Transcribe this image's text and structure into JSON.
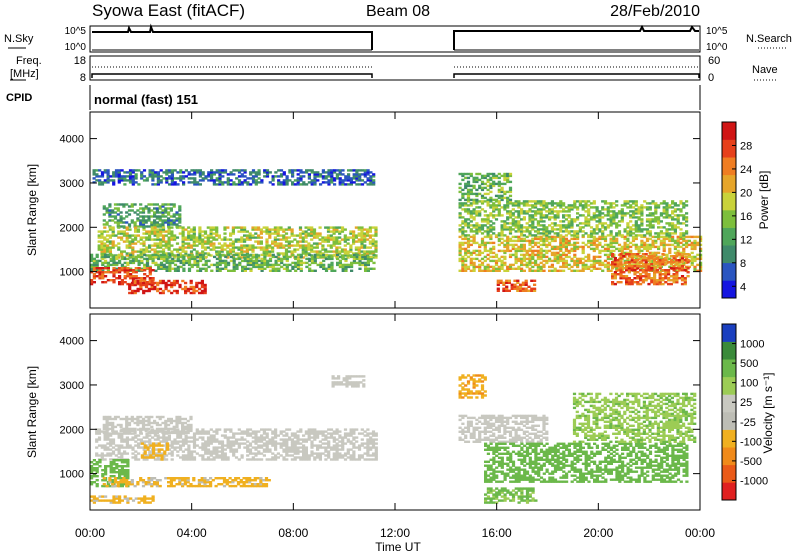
{
  "header": {
    "left": "Syowa East (fitACF)",
    "center": "Beam 08",
    "right": "28/Feb/2010"
  },
  "status_panels": {
    "nsky_label": "N.Sky",
    "nsearch_label": "N.Search",
    "noise_ticks": [
      "10^5",
      "10^0"
    ],
    "freq_label_1": "Freq.",
    "freq_label_2": "[MHz]",
    "freq_ticks": [
      "18",
      "8"
    ],
    "nave_label": "Nave",
    "nave_ticks": [
      "60",
      "0"
    ],
    "cpid_label": "CPID",
    "cpid_value": "normal (fast) 151"
  },
  "chart_data": [
    {
      "type": "heatmap",
      "name": "power",
      "ylabel": "Slant Range [km]",
      "ylim": [
        180,
        4600
      ],
      "yticks": [
        "1000",
        "2000",
        "3000",
        "4000"
      ],
      "colorbar_label": "Power [dB]",
      "colorbar_ticks": [
        "4",
        "8",
        "12",
        "16",
        "20",
        "24",
        "28"
      ],
      "colors": [
        "#1515e0",
        "#2a55c0",
        "#3f8a6a",
        "#4fa65a",
        "#7dbf3c",
        "#c9d23a",
        "#e6a52a",
        "#ef7d22",
        "#e6401b",
        "#d01515"
      ],
      "regions": [
        {
          "t0": 0.1,
          "t1": 11.2,
          "r0": 2950,
          "r1": 3300,
          "dB": 6
        },
        {
          "t0": 0.5,
          "t1": 3.5,
          "r0": 2000,
          "r1": 2500,
          "dB": 10
        },
        {
          "t0": 0.3,
          "t1": 11.2,
          "r0": 1300,
          "r1": 2000,
          "dB": 16
        },
        {
          "t0": 0.0,
          "t1": 11.2,
          "r0": 1000,
          "r1": 1400,
          "dB": 12
        },
        {
          "t0": 0.0,
          "t1": 2.5,
          "r0": 700,
          "r1": 1100,
          "dB": 26
        },
        {
          "t0": 1.5,
          "t1": 4.5,
          "r0": 500,
          "r1": 800,
          "dB": 27
        },
        {
          "t0": 14.5,
          "t1": 24.0,
          "r0": 1000,
          "r1": 1800,
          "dB": 18
        },
        {
          "t0": 14.5,
          "t1": 23.5,
          "r0": 1800,
          "r1": 2600,
          "dB": 14
        },
        {
          "t0": 14.5,
          "t1": 16.5,
          "r0": 2600,
          "r1": 3200,
          "dB": 12
        },
        {
          "t0": 16.0,
          "t1": 17.5,
          "r0": 550,
          "r1": 800,
          "dB": 25
        },
        {
          "t0": 20.5,
          "t1": 23.5,
          "r0": 700,
          "r1": 1400,
          "dB": 24
        }
      ]
    },
    {
      "type": "heatmap",
      "name": "velocity",
      "xlabel": "Time UT",
      "xlim": [
        0,
        24
      ],
      "xticks": [
        "00:00",
        "04:00",
        "08:00",
        "12:00",
        "16:00",
        "20:00",
        "00:00"
      ],
      "ylabel": "Slant Range [km]",
      "ylim": [
        180,
        4600
      ],
      "yticks": [
        "1000",
        "2000",
        "3000",
        "4000"
      ],
      "colorbar_label": "Velocity [m s⁻¹]",
      "colorbar_ticks": [
        "1000",
        "500",
        "100",
        "25",
        "-25",
        "-100",
        "-500",
        "-1000"
      ],
      "colors": [
        "#1a3fbf",
        "#3a8a3a",
        "#6bb84a",
        "#9ccc55",
        "#c8c8c0",
        "#bdbdb5",
        "#f0b020",
        "#f08a1a",
        "#ea5a18",
        "#e02020"
      ],
      "regions": [
        {
          "t0": 0.2,
          "t1": 11.2,
          "r0": 1300,
          "r1": 2000,
          "v": 0
        },
        {
          "t0": 0.5,
          "t1": 4.0,
          "r0": 1900,
          "r1": 2300,
          "v": 0
        },
        {
          "t0": 9.5,
          "t1": 10.8,
          "r0": 2950,
          "r1": 3200,
          "v": 0
        },
        {
          "t0": 0.0,
          "t1": 1.5,
          "r0": 700,
          "r1": 1300,
          "v": 200
        },
        {
          "t0": 0.5,
          "t1": 7.0,
          "r0": 700,
          "r1": 900,
          "v": -150
        },
        {
          "t0": 0.0,
          "t1": 2.5,
          "r0": 330,
          "r1": 500,
          "v": -150
        },
        {
          "t0": 2.0,
          "t1": 3.0,
          "r0": 1300,
          "r1": 1700,
          "v": -300
        },
        {
          "t0": 14.5,
          "t1": 18.0,
          "r0": 1700,
          "r1": 2300,
          "v": 0
        },
        {
          "t0": 14.5,
          "t1": 15.5,
          "r0": 2700,
          "r1": 3200,
          "v": -400
        },
        {
          "t0": 15.5,
          "t1": 23.5,
          "r0": 800,
          "r1": 1700,
          "v": 300
        },
        {
          "t0": 19.0,
          "t1": 23.8,
          "r0": 1700,
          "r1": 2800,
          "v": 80
        },
        {
          "t0": 15.5,
          "t1": 17.5,
          "r0": 330,
          "r1": 650,
          "v": 120
        }
      ]
    }
  ]
}
